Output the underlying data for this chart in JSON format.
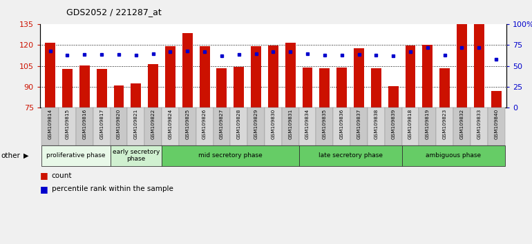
{
  "title": "GDS2052 / 221287_at",
  "samples": [
    "GSM109814",
    "GSM109815",
    "GSM109816",
    "GSM109817",
    "GSM109820",
    "GSM109821",
    "GSM109822",
    "GSM109824",
    "GSM109825",
    "GSM109826",
    "GSM109827",
    "GSM109828",
    "GSM109829",
    "GSM109830",
    "GSM109831",
    "GSM109834",
    "GSM109835",
    "GSM109836",
    "GSM109837",
    "GSM109838",
    "GSM109839",
    "GSM109818",
    "GSM109819",
    "GSM109823",
    "GSM109832",
    "GSM109833",
    "GSM109840"
  ],
  "count_values": [
    121.5,
    103.0,
    105.5,
    103.0,
    91.0,
    92.5,
    106.5,
    119.0,
    128.5,
    119.0,
    103.5,
    104.5,
    119.0,
    119.5,
    121.5,
    104.0,
    103.5,
    104.0,
    118.0,
    103.5,
    90.5,
    119.5,
    120.0,
    103.5,
    135.0,
    135.0,
    87.0
  ],
  "percentile_pct": [
    68,
    63,
    64,
    64,
    64,
    63,
    65,
    67,
    68,
    67,
    62,
    64,
    65,
    67,
    67,
    65,
    63,
    63,
    64,
    63,
    62,
    67,
    72,
    63,
    72,
    72,
    58
  ],
  "phase_groups": [
    {
      "name": "proliferative phase",
      "samples": [
        "GSM109814",
        "GSM109815",
        "GSM109816",
        "GSM109817"
      ],
      "color": "#e8f8e8"
    },
    {
      "name": "early secretory\nphase",
      "samples": [
        "GSM109820",
        "GSM109821",
        "GSM109822"
      ],
      "color": "#d0f0d0"
    },
    {
      "name": "mid secretory phase",
      "samples": [
        "GSM109824",
        "GSM109825",
        "GSM109826",
        "GSM109827",
        "GSM109828",
        "GSM109829",
        "GSM109830",
        "GSM109831"
      ],
      "color": "#66cc66"
    },
    {
      "name": "late secretory phase",
      "samples": [
        "GSM109834",
        "GSM109835",
        "GSM109836",
        "GSM109837",
        "GSM109838",
        "GSM109839"
      ],
      "color": "#66cc66"
    },
    {
      "name": "ambiguous phase",
      "samples": [
        "GSM109818",
        "GSM109819",
        "GSM109823",
        "GSM109832",
        "GSM109833",
        "GSM109840"
      ],
      "color": "#66cc66"
    }
  ],
  "bar_color": "#cc1100",
  "dot_color": "#0000cc",
  "ylim_left": [
    75,
    135
  ],
  "ylim_right": [
    0,
    100
  ],
  "yticks_left": [
    75,
    90,
    105,
    120,
    135
  ],
  "yticks_right": [
    0,
    25,
    50,
    75,
    100
  ],
  "grid_lines": [
    90,
    105,
    120
  ],
  "bg_color": "#f0f0f0",
  "plot_bg_color": "#ffffff",
  "other_label": "other",
  "legend_count": "count",
  "legend_percentile": "percentile rank within the sample",
  "bar_width": 0.6
}
